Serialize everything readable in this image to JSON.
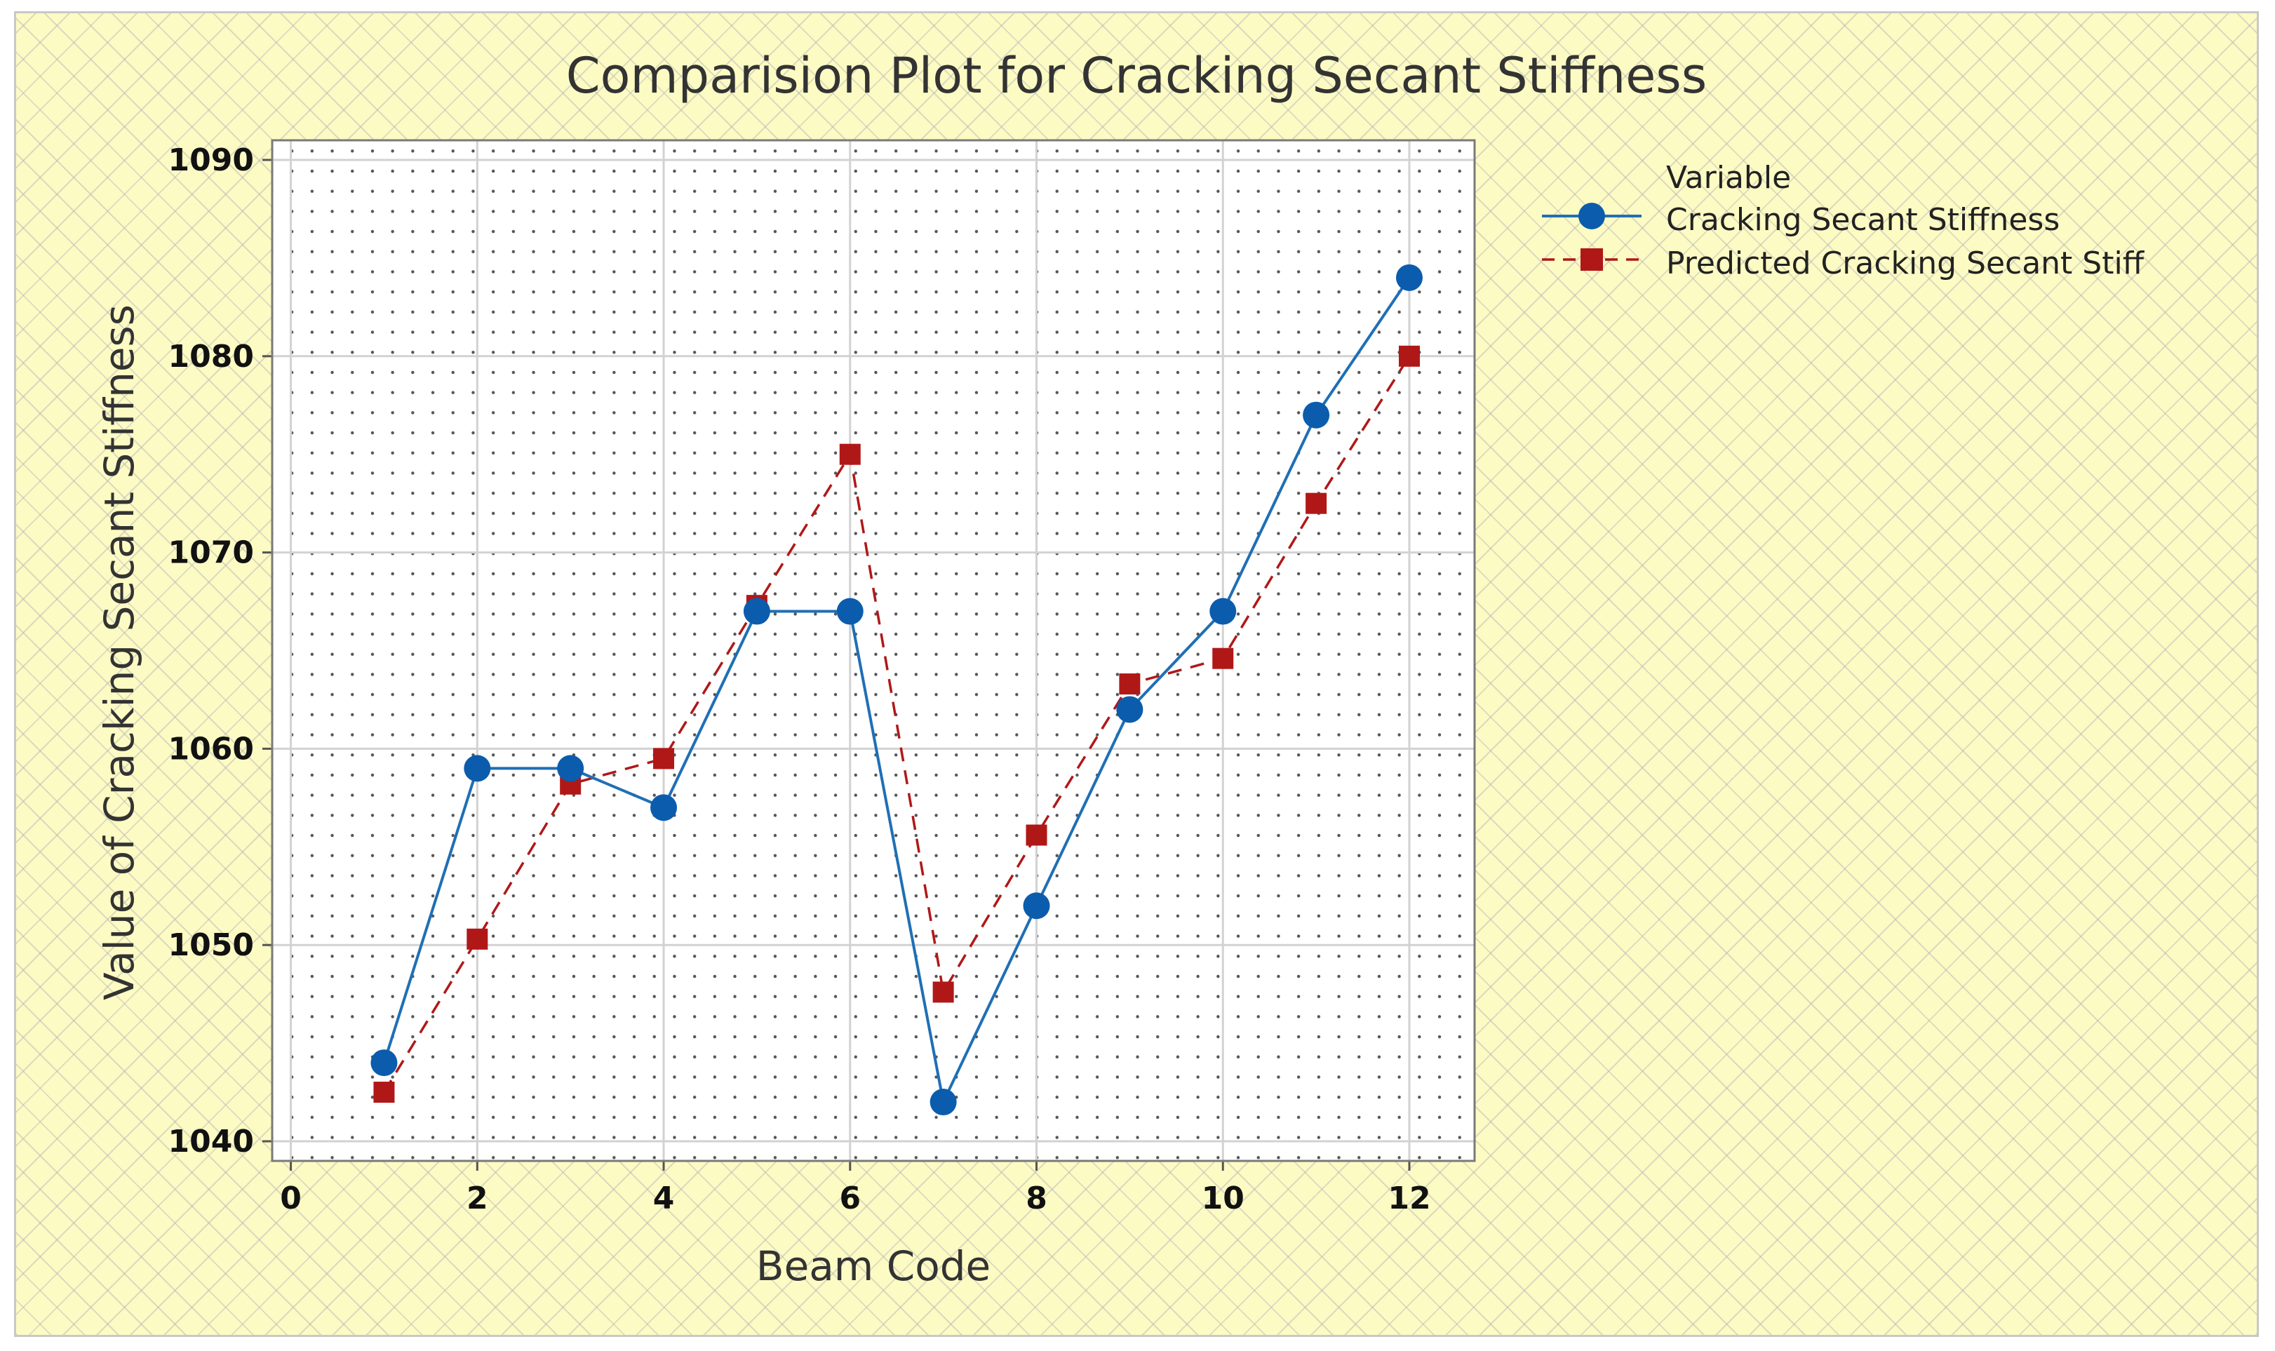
{
  "chart_data": {
    "type": "line",
    "title": "Comparision Plot for Cracking Secant Stiffness",
    "xlabel": "Beam Code",
    "ylabel": "Value of Cracking Secant Stiffness",
    "xlim": [
      -0.2,
      12.7
    ],
    "ylim": [
      1039,
      1091
    ],
    "xticks": [
      0,
      2,
      4,
      6,
      8,
      10,
      12
    ],
    "yticks": [
      1040,
      1050,
      1060,
      1070,
      1080,
      1090
    ],
    "grid": true,
    "legend_position": "top-right",
    "legend_title": "Variable",
    "x": [
      1,
      2,
      3,
      4,
      5,
      6,
      7,
      8,
      9,
      10,
      11,
      12
    ],
    "series": [
      {
        "name": "Cracking Secant Stiffness",
        "color": "#1f6fb5",
        "marker": "circle",
        "line_style": "solid",
        "values": [
          1044,
          1059,
          1059,
          1057,
          1067,
          1067,
          1042,
          1052,
          1062,
          1067,
          1077,
          1084
        ]
      },
      {
        "name": "Predicted Cracking Secant Stiff",
        "color": "#b01818",
        "marker": "square",
        "line_style": "dashed",
        "values": [
          1042.5,
          1050.3,
          1058.2,
          1059.5,
          1067.3,
          1075,
          1047.6,
          1055.6,
          1063.3,
          1064.6,
          1072.5,
          1080
        ]
      }
    ]
  }
}
